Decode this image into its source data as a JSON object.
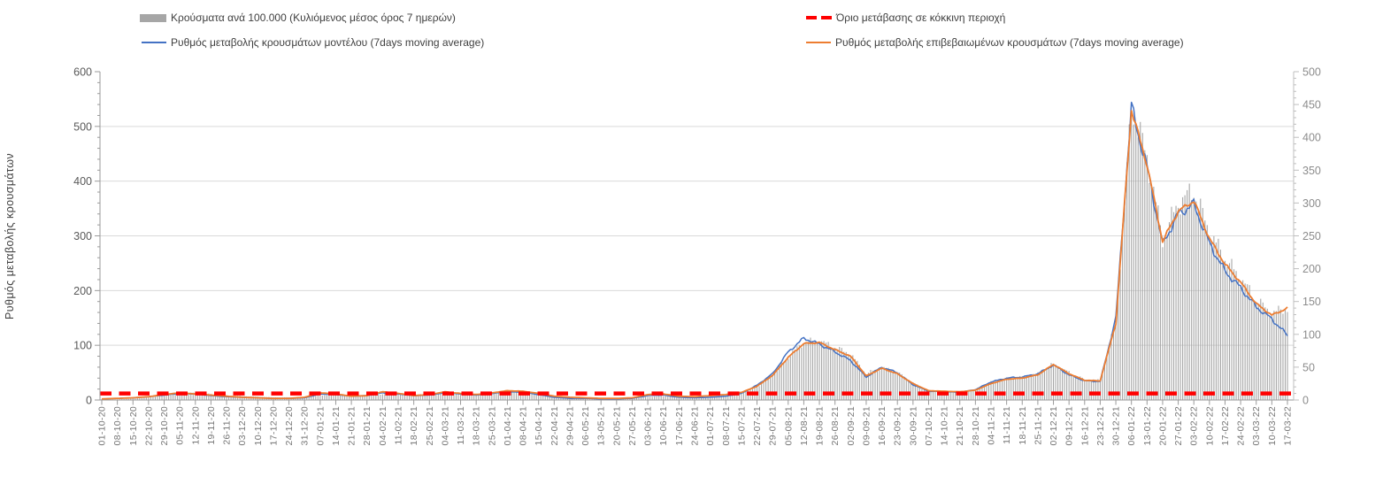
{
  "legend": {
    "bars_label": "Κρούσματα ανά 100.000 (Κυλιόμενος μέσος όρος 7 ημερών)",
    "model_label": "Ρυθμός μεταβολής κρουσμάτων μοντέλου (7days moving average)",
    "threshold_label": "Όριο μετάβασης σε κόκκινη περιοχή",
    "confirmed_label": "Ρυθμός μεταβολής επιβεβαιωμένων κρουσμάτων (7days moving average)"
  },
  "colors": {
    "bars": "#a6a6a6",
    "model_line": "#4472c4",
    "confirmed_line": "#ed7d31",
    "threshold_line": "#ff0000",
    "gridline": "#d9d9d9",
    "axis": "#9a9a9a",
    "left_tick_text": "#595959",
    "right_tick_text": "#8c8c8c",
    "date_text": "#757575"
  },
  "chart_data": {
    "type": "combo",
    "title": "",
    "left_axis": {
      "label": "Ρυθμός μεταβολής κρουσμάτων",
      "min": 0,
      "max": 600,
      "step": 100,
      "ticks": [
        0,
        100,
        200,
        300,
        400,
        500,
        600
      ]
    },
    "right_axis": {
      "label": "",
      "min": 0,
      "max": 500,
      "step": 50,
      "ticks": [
        0,
        50,
        100,
        150,
        200,
        250,
        300,
        350,
        400,
        450,
        500
      ]
    },
    "grid": "horizontal-only",
    "legend_position": "top",
    "x_weekly": [
      "01-10-20",
      "08-10-20",
      "15-10-20",
      "22-10-20",
      "29-10-20",
      "05-11-20",
      "12-11-20",
      "19-11-20",
      "26-11-20",
      "03-12-20",
      "10-12-20",
      "17-12-20",
      "24-12-20",
      "31-12-20",
      "07-01-21",
      "14-01-21",
      "21-01-21",
      "28-01-21",
      "04-02-21",
      "11-02-21",
      "18-02-21",
      "25-02-21",
      "04-03-21",
      "11-03-21",
      "18-03-21",
      "25-03-21",
      "01-04-21",
      "08-04-21",
      "15-04-21",
      "22-04-21",
      "29-04-21",
      "06-05-21",
      "13-05-21",
      "20-05-21",
      "27-05-21",
      "03-06-21",
      "10-06-21",
      "17-06-21",
      "24-06-21",
      "01-07-21",
      "08-07-21",
      "15-07-21",
      "22-07-21",
      "29-07-21",
      "05-08-21",
      "12-08-21",
      "19-08-21",
      "26-08-21",
      "02-09-21",
      "09-09-21",
      "16-09-21",
      "23-09-21",
      "30-09-21",
      "07-10-21",
      "14-10-21",
      "21-10-21",
      "28-10-21",
      "04-11-21",
      "11-11-21",
      "18-11-21",
      "25-11-21",
      "02-12-21",
      "09-12-21",
      "16-12-21",
      "23-12-21",
      "30-12-21",
      "06-01-22",
      "13-01-22",
      "20-01-22",
      "27-01-22",
      "03-02-22",
      "10-02-22",
      "17-02-22",
      "24-02-22",
      "03-03-22",
      "10-03-22",
      "17-03-22"
    ],
    "series": [
      {
        "name": "Κρούσματα ανά 100.000 (Κυλιόμενος μέσος όρος 7 ημερών)",
        "kind": "bar",
        "axis": "right",
        "color": "#a6a6a6",
        "values": [
          1,
          1,
          2,
          4,
          7,
          10,
          11,
          9,
          7,
          6,
          5,
          4,
          4,
          4,
          7,
          8,
          6,
          6,
          9,
          10,
          8,
          9,
          11,
          10,
          9,
          11,
          13,
          12,
          10,
          6,
          4,
          3,
          2,
          2,
          3,
          5,
          6,
          5,
          4,
          5,
          7,
          10,
          20,
          38,
          66,
          88,
          90,
          80,
          70,
          40,
          50,
          42,
          26,
          14,
          13,
          13,
          16,
          27,
          33,
          35,
          40,
          55,
          42,
          31,
          30,
          120,
          445,
          370,
          245,
          300,
          318,
          255,
          215,
          185,
          152,
          132,
          140
        ]
      },
      {
        "name": "Ρυθμός μεταβολής κρουσμάτων μοντέλου (7days moving average)",
        "kind": "line",
        "axis": "left",
        "color": "#4472c4",
        "values": [
          2,
          3,
          4,
          6,
          9,
          12,
          11,
          8,
          6,
          5,
          4,
          3,
          3,
          4,
          11,
          10,
          7,
          8,
          13,
          11,
          8,
          9,
          13,
          11,
          9,
          12,
          15,
          14,
          10,
          5,
          3,
          3,
          2,
          2,
          3,
          8,
          9,
          5,
          4,
          5,
          7,
          12,
          27,
          48,
          88,
          113,
          102,
          88,
          72,
          42,
          60,
          50,
          28,
          16,
          15,
          14,
          19,
          33,
          40,
          42,
          48,
          64,
          46,
          35,
          34,
          150,
          535,
          425,
          285,
          340,
          358,
          286,
          235,
          205,
          170,
          148,
          118
        ]
      },
      {
        "name": "Ρυθμός μεταβολής επιβεβαιωμένων κρουσμάτων (7days moving average)",
        "kind": "line",
        "axis": "left",
        "color": "#ed7d31",
        "values": [
          2,
          3,
          4,
          6,
          10,
          13,
          11,
          9,
          7,
          5,
          4,
          3,
          3,
          5,
          13,
          11,
          7,
          8,
          15,
          12,
          8,
          10,
          15,
          12,
          10,
          13,
          17,
          16,
          12,
          7,
          5,
          4,
          3,
          3,
          4,
          10,
          11,
          7,
          6,
          8,
          10,
          14,
          25,
          45,
          78,
          103,
          105,
          92,
          80,
          44,
          58,
          48,
          30,
          17,
          16,
          15,
          18,
          30,
          38,
          40,
          46,
          65,
          48,
          36,
          35,
          140,
          530,
          430,
          290,
          345,
          364,
          295,
          248,
          215,
          176,
          155,
          168
        ]
      },
      {
        "name": "Όριο μετάβασης σε κόκκινη περιοχή",
        "kind": "threshold-dashed",
        "axis": "right",
        "color": "#ff0000",
        "value": 10
      }
    ]
  }
}
